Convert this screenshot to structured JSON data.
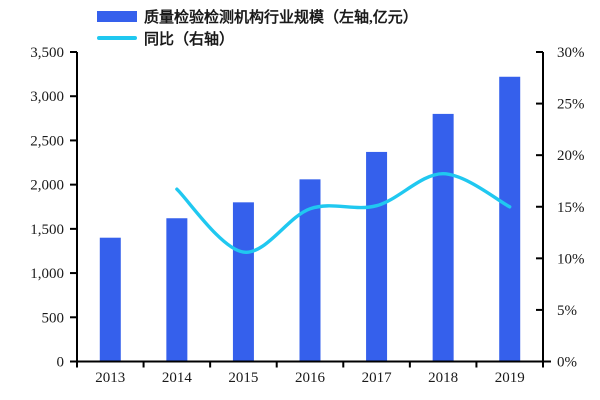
{
  "chart_data": {
    "type": "combo",
    "categories": [
      "2013",
      "2014",
      "2015",
      "2016",
      "2017",
      "2018",
      "2019"
    ],
    "series": [
      {
        "name": "质量检验检测机构行业规模（左轴,亿元）",
        "type": "bar",
        "axis": "left",
        "values": [
          1400,
          1620,
          1800,
          2060,
          2370,
          2800,
          3220
        ],
        "color": "#3560EC"
      },
      {
        "name": "同比（右轴）",
        "type": "line",
        "axis": "right",
        "values": [
          null,
          16.7,
          10.6,
          14.8,
          15.1,
          18.2,
          15.0
        ],
        "color": "#20C8F0"
      }
    ],
    "left_axis": {
      "min": 0,
      "max": 3500,
      "step": 500,
      "tick_labels": [
        "0",
        "500",
        "1,000",
        "1,500",
        "2,000",
        "2,500",
        "3,000",
        "3,500"
      ]
    },
    "right_axis": {
      "min": 0,
      "max": 30,
      "step": 5,
      "tick_labels": [
        "0%",
        "5%",
        "10%",
        "15%",
        "20%",
        "25%",
        "30%"
      ]
    },
    "grid": false,
    "legend_position": "top-left",
    "colors": {
      "axis": "#000000",
      "text": "#1a1a1a",
      "background": "#ffffff"
    }
  }
}
